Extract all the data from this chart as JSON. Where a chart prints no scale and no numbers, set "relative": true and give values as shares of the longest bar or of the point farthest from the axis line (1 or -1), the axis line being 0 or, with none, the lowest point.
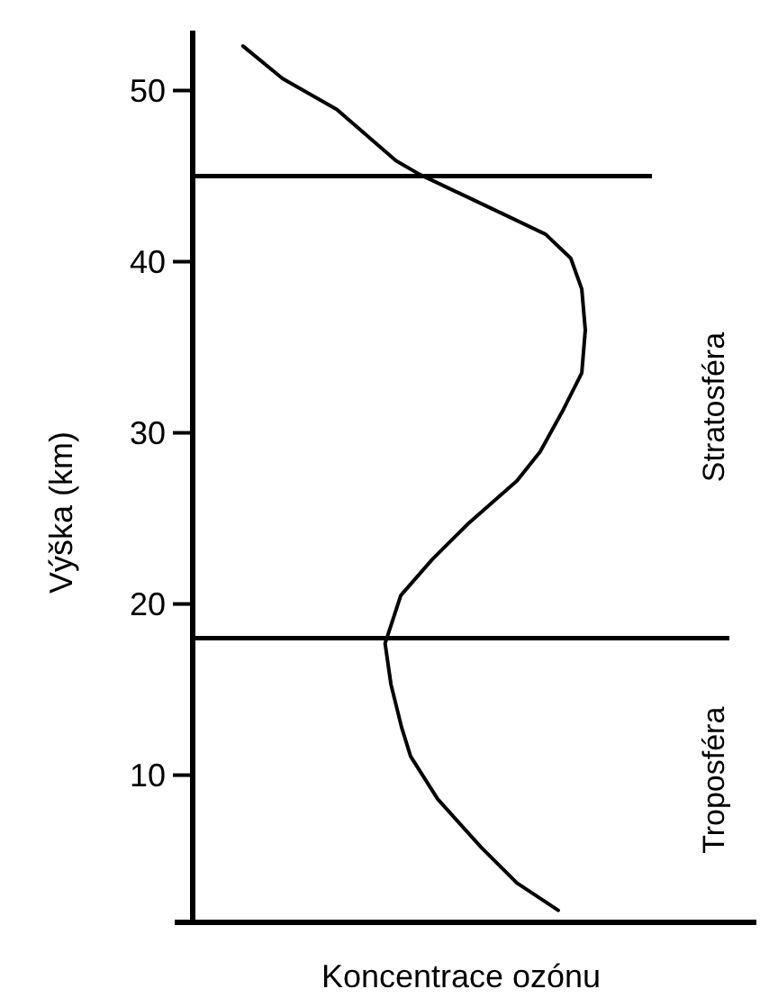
{
  "chart_data": {
    "type": "line",
    "orientation": "horizontal",
    "relative": true,
    "xlabel": "Koncentrace ozónu",
    "ylabel": "Výška (km)",
    "tick_labels": "y",
    "grid": false,
    "legend": false,
    "marker": "none",
    "line_style": "solid",
    "ylim": [
      1.4,
      53.5
    ],
    "yticks": [
      10,
      20,
      30,
      40,
      50
    ],
    "series": [
      {
        "color": "#000000",
        "x": [
          52.6,
          50.7,
          48.9,
          45.9,
          45.1,
          42.9,
          41.6,
          40.2,
          38.4,
          36.0,
          33.5,
          31.4,
          28.9,
          27.2,
          24.7,
          22.6,
          20.5,
          17.7,
          15.3,
          12.8,
          11.1,
          8.6,
          5.8,
          3.7,
          2.1
        ],
        "values": [
          0.128,
          0.229,
          0.367,
          0.518,
          0.578,
          0.78,
          0.899,
          0.963,
          0.991,
          1.0,
          0.991,
          0.945,
          0.885,
          0.826,
          0.702,
          0.61,
          0.53,
          0.49,
          0.505,
          0.532,
          0.555,
          0.624,
          0.734,
          0.826,
          0.931
        ]
      }
    ],
    "ref_lines": [
      {
        "axis": "y",
        "value": 45,
        "color": "#000000"
      },
      {
        "axis": "y",
        "value": 18,
        "color": "#000000"
      }
    ],
    "annotations": [
      "Stratosféra",
      "Troposféra"
    ]
  }
}
